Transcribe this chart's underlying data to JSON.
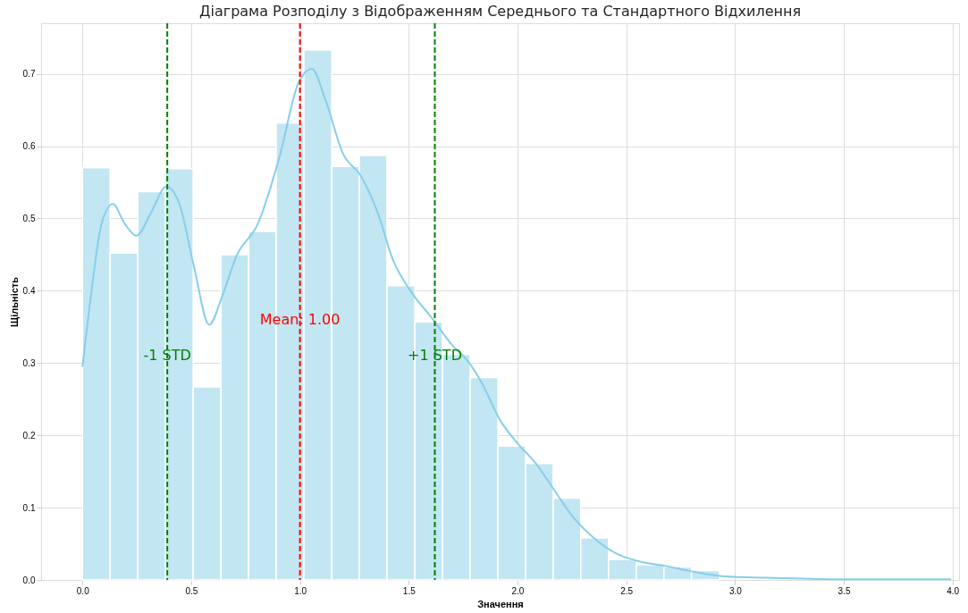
{
  "chart_data": {
    "type": "histogram",
    "title": "Діаграма Розподілу з Відображенням Середнього та Стандартного Відхилення",
    "xlabel": "Значення",
    "ylabel": "Щільність",
    "bins": [
      0,
      0.127,
      0.255,
      0.382,
      0.509,
      0.637,
      0.764,
      0.891,
      1.018,
      1.146,
      1.273,
      1.4,
      1.528,
      1.655,
      1.782,
      1.91,
      2.037,
      2.164,
      2.291,
      2.419,
      2.546,
      2.673,
      2.8,
      2.928
    ],
    "values": [
      0.57,
      0.452,
      0.537,
      0.569,
      0.267,
      0.45,
      0.482,
      0.632,
      0.733,
      0.572,
      0.587,
      0.407,
      0.357,
      0.312,
      0.28,
      0.185,
      0.161,
      0.113,
      0.058,
      0.028,
      0.021,
      0.018,
      0.013
    ],
    "color": "#c3e6f3",
    "series": [
      {
        "type": "line",
        "color": "#87ceeb",
        "x": [
          0,
          0.039,
          0.088,
          0.14,
          0.194,
          0.248,
          0.317,
          0.385,
          0.447,
          0.513,
          0.583,
          0.643,
          0.708,
          0.807,
          0.905,
          0.995,
          1.055,
          1.117,
          1.199,
          1.28,
          1.362,
          1.427,
          1.501,
          1.607,
          1.705,
          1.771,
          1.837,
          1.918,
          2.0,
          2.082,
          2.163,
          2.245,
          2.359,
          2.458,
          2.556,
          2.686,
          2.817,
          2.948,
          3.144,
          3.471,
          3.993
        ],
        "values": [
          0.295,
          0.393,
          0.493,
          0.52,
          0.493,
          0.476,
          0.509,
          0.544,
          0.519,
          0.433,
          0.353,
          0.393,
          0.448,
          0.493,
          0.584,
          0.689,
          0.707,
          0.664,
          0.589,
          0.559,
          0.504,
          0.443,
          0.403,
          0.362,
          0.323,
          0.303,
          0.272,
          0.222,
          0.189,
          0.162,
          0.127,
          0.091,
          0.056,
          0.036,
          0.026,
          0.019,
          0.011,
          0.005,
          0.003,
          0.001,
          0.001
        ]
      }
    ],
    "ref_lines": [
      {
        "axis": "x",
        "value": 1.0,
        "color": "#ff0000",
        "line_style": "dashed"
      },
      {
        "axis": "x",
        "value": 0.39,
        "color": "#008000",
        "line_style": "dashed"
      },
      {
        "axis": "x",
        "value": 1.62,
        "color": "#008000",
        "line_style": "dashed"
      }
    ],
    "annotations": [
      {
        "text": "Mean: 1.00",
        "x": 1.0,
        "y": 0.36
      },
      {
        "text": "-1 STD",
        "x": 0.39,
        "y": 0.31
      },
      {
        "text": "+1 STD",
        "x": 1.62,
        "y": 0.31
      }
    ],
    "xlim": [
      -0.19,
      4.03
    ],
    "xticks": [
      {
        "value": 0,
        "label": "0.0"
      },
      0.5,
      {
        "value": 1,
        "label": "1.0"
      },
      1.5,
      {
        "value": 2,
        "label": "2.0"
      },
      2.5,
      {
        "value": 3,
        "label": "3.0"
      },
      3.5,
      {
        "value": 4,
        "label": "4.0"
      }
    ],
    "ylim": [
      0,
      0.77
    ],
    "yticks": [
      {
        "value": 0,
        "label": "0.0"
      },
      0.1,
      0.2,
      0.3,
      0.4,
      0.5,
      0.6,
      0.7
    ],
    "grid": true
  }
}
